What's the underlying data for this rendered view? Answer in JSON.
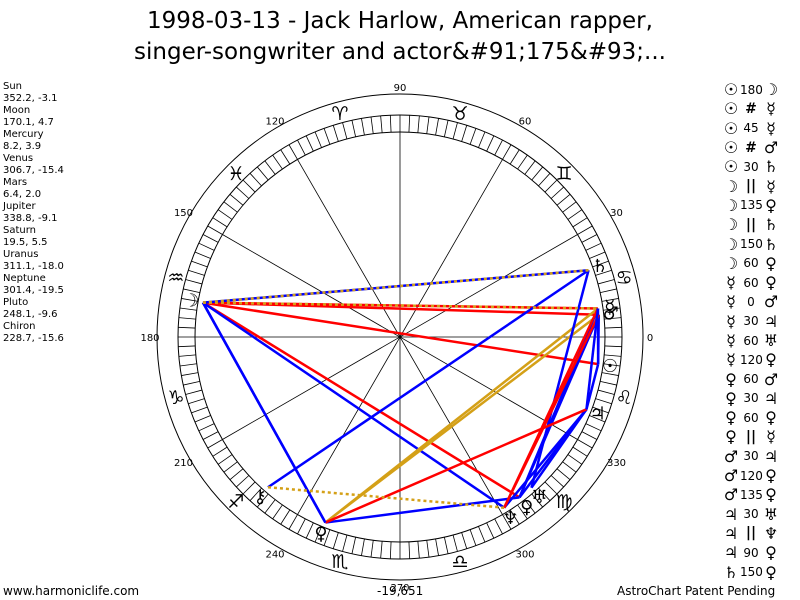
{
  "title": {
    "line1": "1998-03-13 - Jack Harlow, American rapper,",
    "line2": "singer-songwriter and actor&#91;175&#93;..."
  },
  "planets": [
    {
      "name": "Sun",
      "coords": "352.2, -3.1"
    },
    {
      "name": "Moon",
      "coords": "170.1, 4.7"
    },
    {
      "name": "Mercury",
      "coords": "8.2, 3.9"
    },
    {
      "name": "Venus",
      "coords": "306.7, -15.4"
    },
    {
      "name": "Mars",
      "coords": "6.4, 2.0"
    },
    {
      "name": "Jupiter",
      "coords": "338.8, -9.1"
    },
    {
      "name": "Saturn",
      "coords": "19.5, 5.5"
    },
    {
      "name": "Uranus",
      "coords": "311.1, -18.0"
    },
    {
      "name": "Neptune",
      "coords": "301.4, -19.5"
    },
    {
      "name": "Pluto",
      "coords": "248.1, -9.6"
    },
    {
      "name": "Chiron",
      "coords": "228.7, -15.6"
    }
  ],
  "aspects": [
    {
      "p1": "☉",
      "value": "180",
      "p2": "☽"
    },
    {
      "p1": "☉",
      "value": "#",
      "p2": "☿"
    },
    {
      "p1": "☉",
      "value": "45",
      "p2": "☿"
    },
    {
      "p1": "☉",
      "value": "#",
      "p2": "♂"
    },
    {
      "p1": "☉",
      "value": "30",
      "p2": "♄"
    },
    {
      "p1": "☽",
      "value": "||",
      "p2": "☿"
    },
    {
      "p1": "☽",
      "value": "135",
      "p2": "♀"
    },
    {
      "p1": "☽",
      "value": "||",
      "p2": "♄"
    },
    {
      "p1": "☽",
      "value": "150",
      "p2": "♄"
    },
    {
      "p1": "☽",
      "value": "60",
      "p2": "♀"
    },
    {
      "p1": "☿",
      "value": "60",
      "p2": "♀"
    },
    {
      "p1": "☿",
      "value": "0",
      "p2": "♂"
    },
    {
      "p1": "☿",
      "value": "30",
      "p2": "♃"
    },
    {
      "p1": "☿",
      "value": "60",
      "p2": "♅"
    },
    {
      "p1": "☿",
      "value": "120",
      "p2": "♀"
    },
    {
      "p1": "♀",
      "value": "60",
      "p2": "♂"
    },
    {
      "p1": "♀",
      "value": "30",
      "p2": "♃"
    },
    {
      "p1": "♀",
      "value": "60",
      "p2": "♀"
    },
    {
      "p1": "♀",
      "value": "||",
      "p2": "☿"
    },
    {
      "p1": "♂",
      "value": "30",
      "p2": "♃"
    },
    {
      "p1": "♂",
      "value": "120",
      "p2": "♀"
    },
    {
      "p1": "♂",
      "value": "135",
      "p2": "♀"
    },
    {
      "p1": "♃",
      "value": "30",
      "p2": "♅"
    },
    {
      "p1": "♃",
      "value": "||",
      "p2": "♆"
    },
    {
      "p1": "♃",
      "value": "90",
      "p2": "♀"
    },
    {
      "p1": "♄",
      "value": "150",
      "p2": "♀"
    }
  ],
  "wheel": {
    "degree_labels": [
      "90",
      "60",
      "30",
      "0",
      "330",
      "300",
      "270",
      "240",
      "210",
      "180",
      "150",
      "120"
    ],
    "sign_glyphs": [
      "♈",
      "♉",
      "♊",
      "♋",
      "♌",
      "♍",
      "♎",
      "♏",
      "♐",
      "♑",
      "♒",
      "♓"
    ],
    "planet_glyphs": {
      "sun": "☉",
      "moon": "☽",
      "mercury": "☿",
      "venus": "♀",
      "mars": "♂",
      "jupiter": "♃",
      "saturn": "♄",
      "uranus": "♅",
      "neptune": "♆",
      "pluto": "♀",
      "chiron": "⚷"
    },
    "colors": {
      "red": "#ff0000",
      "blue": "#0000ff",
      "gold": "#d4a017"
    }
  },
  "footer": {
    "left": "www.harmoniclife.com",
    "center": "-19,651",
    "right": "AstroChart Patent Pending"
  }
}
